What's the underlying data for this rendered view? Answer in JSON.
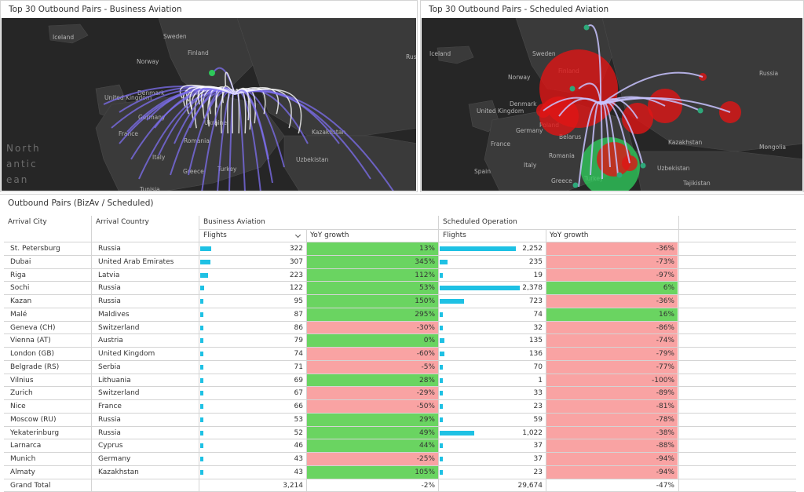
{
  "panels": {
    "biz_title": "Top 30 Outbound Pairs - Business Aviation",
    "sched_title": "Top 30 Outbound Pairs - Scheduled Aviation",
    "table_title": "Outbound Pairs (BizAv / Scheduled)"
  },
  "map_biz_labels": [
    "Iceland",
    "Sweden",
    "Finland",
    "Norway",
    "United Kingdom",
    "Denmark",
    "Germany",
    "France",
    "Italy",
    "Greece",
    "Turkey",
    "Ukraine",
    "Romania",
    "Kazakhstan",
    "Uzbekistan",
    "Russ",
    "Tunisia",
    "North",
    "antic",
    "ean"
  ],
  "map_sched_labels": [
    "Iceland",
    "Sweden",
    "Finland",
    "Norway",
    "Russia",
    "United Kingdom",
    "Denmark",
    "Germany",
    "Poland",
    "Belarus",
    "France",
    "Romania",
    "Kazakhstan",
    "Mongolia",
    "Spain",
    "Italy",
    "Greece",
    "Turkey",
    "Uzbekistan",
    "Tajikistan"
  ],
  "table": {
    "headers": {
      "arrival_city": "Arrival City",
      "arrival_country": "Arrival Country",
      "business_aviation": "Business Aviation",
      "scheduled_operation": "Scheduled Operation",
      "flights_biz": "Flights",
      "yoy_biz": "YoY growth",
      "flights_sched": "Flights",
      "yoy_sched": "YoY growth"
    },
    "sort_icon": "chevron-down-icon",
    "rows": [
      {
        "city": "St. Petersburg",
        "country": "Russia",
        "biz_flights": "322",
        "biz_yoy": "13%",
        "sched_flights": "2,252",
        "sched_yoy": "-36%"
      },
      {
        "city": "Dubai",
        "country": "United Arab Emirates",
        "biz_flights": "307",
        "biz_yoy": "345%",
        "sched_flights": "235",
        "sched_yoy": "-73%"
      },
      {
        "city": "Riga",
        "country": "Latvia",
        "biz_flights": "223",
        "biz_yoy": "112%",
        "sched_flights": "19",
        "sched_yoy": "-97%"
      },
      {
        "city": "Sochi",
        "country": "Russia",
        "biz_flights": "122",
        "biz_yoy": "53%",
        "sched_flights": "2,378",
        "sched_yoy": "6%"
      },
      {
        "city": "Kazan",
        "country": "Russia",
        "biz_flights": "95",
        "biz_yoy": "150%",
        "sched_flights": "723",
        "sched_yoy": "-36%"
      },
      {
        "city": "Malé",
        "country": "Maldives",
        "biz_flights": "87",
        "biz_yoy": "295%",
        "sched_flights": "74",
        "sched_yoy": "16%"
      },
      {
        "city": "Geneva (CH)",
        "country": "Switzerland",
        "biz_flights": "86",
        "biz_yoy": "-30%",
        "sched_flights": "32",
        "sched_yoy": "-86%"
      },
      {
        "city": "Vienna (AT)",
        "country": "Austria",
        "biz_flights": "79",
        "biz_yoy": "0%",
        "sched_flights": "135",
        "sched_yoy": "-74%"
      },
      {
        "city": "London (GB)",
        "country": "United Kingdom",
        "biz_flights": "74",
        "biz_yoy": "-60%",
        "sched_flights": "136",
        "sched_yoy": "-79%"
      },
      {
        "city": "Belgrade (RS)",
        "country": "Serbia",
        "biz_flights": "71",
        "biz_yoy": "-5%",
        "sched_flights": "70",
        "sched_yoy": "-77%"
      },
      {
        "city": "Vilnius",
        "country": "Lithuania",
        "biz_flights": "69",
        "biz_yoy": "28%",
        "sched_flights": "1",
        "sched_yoy": "-100%"
      },
      {
        "city": "Zurich",
        "country": "Switzerland",
        "biz_flights": "67",
        "biz_yoy": "-29%",
        "sched_flights": "33",
        "sched_yoy": "-89%"
      },
      {
        "city": "Nice",
        "country": "France",
        "biz_flights": "66",
        "biz_yoy": "-50%",
        "sched_flights": "23",
        "sched_yoy": "-81%"
      },
      {
        "city": "Moscow (RU)",
        "country": "Russia",
        "biz_flights": "53",
        "biz_yoy": "29%",
        "sched_flights": "59",
        "sched_yoy": "-78%"
      },
      {
        "city": "Yekaterinburg",
        "country": "Russia",
        "biz_flights": "52",
        "biz_yoy": "49%",
        "sched_flights": "1,022",
        "sched_yoy": "-38%"
      },
      {
        "city": "Larnarca",
        "country": "Cyprus",
        "biz_flights": "46",
        "biz_yoy": "44%",
        "sched_flights": "37",
        "sched_yoy": "-88%"
      },
      {
        "city": "Munich",
        "country": "Germany",
        "biz_flights": "43",
        "biz_yoy": "-25%",
        "sched_flights": "37",
        "sched_yoy": "-94%"
      },
      {
        "city": "Almaty",
        "country": "Kazakhstan",
        "biz_flights": "43",
        "biz_yoy": "105%",
        "sched_flights": "23",
        "sched_yoy": "-94%"
      }
    ],
    "total": {
      "label": "Grand Total",
      "biz_flights": "3,214",
      "biz_yoy": "-2%",
      "sched_flights": "29,674",
      "sched_yoy": "-47%"
    }
  },
  "colors": {
    "bar": "#1ec1e4",
    "positive": "#6ad461",
    "negative": "#f9a3a3",
    "map_bg": "#262626",
    "biz_arc": "#7d6ff0",
    "sched_bubble_red": "#e01515",
    "sched_bubble_green": "#2ec75a"
  }
}
